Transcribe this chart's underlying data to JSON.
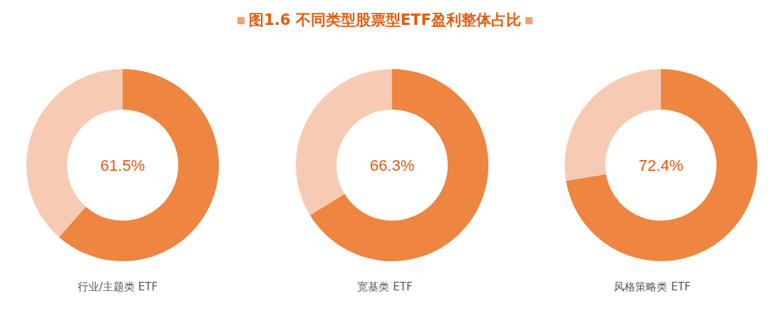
{
  "chart_data": [
    {
      "type": "donut",
      "xlabel": "行业/主题类 ETF",
      "categories": [
        null,
        null
      ],
      "values": [
        61.5,
        38.5
      ],
      "colors": [
        "#ee8540",
        "#f7cbb3"
      ],
      "annotations": [
        "61.5%"
      ]
    },
    {
      "type": "donut",
      "title": "图1.6  不同类型股票型ETF盈利整体占比",
      "xlabel": "宽基类 ETF",
      "categories": [
        null,
        null
      ],
      "values": [
        66.3,
        33.7
      ],
      "colors": [
        "#ee8540",
        "#f7cbb3"
      ],
      "annotations": [
        "66.3%"
      ]
    },
    {
      "type": "donut",
      "xlabel": "风格策略类 ETF",
      "categories": [
        null,
        null
      ],
      "values": [
        72.4,
        27.6
      ],
      "colors": [
        "#ee8540",
        "#f7cbb3"
      ],
      "annotations": [
        "72.4%"
      ]
    }
  ]
}
